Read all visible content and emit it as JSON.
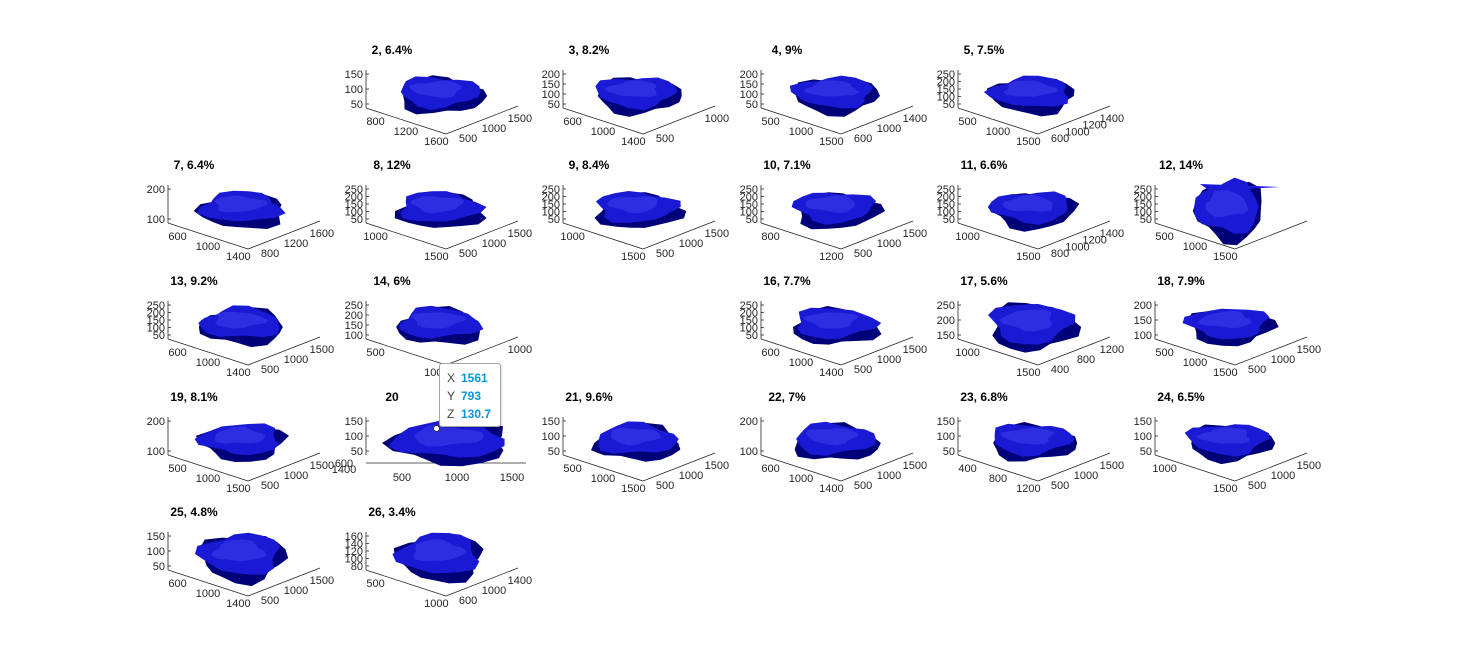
{
  "colors": {
    "surface": "#1a1ad4",
    "surface_dark": "#000078",
    "axis": "#262626"
  },
  "chart_data": {
    "type": "3d-surface-grid",
    "subplots": [
      {
        "title": "2, 6.4%",
        "z_ticks": [
          "150",
          "100",
          "50"
        ],
        "x_ticks": [
          "800",
          "1200",
          "1600"
        ],
        "y_ticks": [
          "500",
          "1000",
          "1500"
        ]
      },
      {
        "title": "3, 8.2%",
        "z_ticks": [
          "200",
          "150",
          "100",
          "50"
        ],
        "x_ticks": [
          "600",
          "1000",
          "1400"
        ],
        "y_ticks": [
          "500",
          "1000"
        ]
      },
      {
        "title": "4, 9%",
        "z_ticks": [
          "200",
          "150",
          "100",
          "50"
        ],
        "x_ticks": [
          "500",
          "1000",
          "1500"
        ],
        "y_ticks": [
          "600",
          "1000",
          "1400"
        ]
      },
      {
        "title": "5, 7.5%",
        "z_ticks": [
          "250",
          "200",
          "150",
          "100",
          "50"
        ],
        "x_ticks": [
          "500",
          "1000",
          "1500"
        ],
        "y_ticks": [
          "600",
          "1000",
          "1200",
          "1400"
        ]
      },
      {
        "title": "7, 6.4%",
        "z_ticks": [
          "200",
          "100"
        ],
        "x_ticks": [
          "600",
          "1000",
          "1400"
        ],
        "y_ticks": [
          "800",
          "1200",
          "1600"
        ]
      },
      {
        "title": "8, 12%",
        "z_ticks": [
          "250",
          "200",
          "150",
          "100",
          "50"
        ],
        "x_ticks": [
          "1000",
          "1500"
        ],
        "y_ticks": [
          "500",
          "1000",
          "1500"
        ]
      },
      {
        "title": "9, 8.4%",
        "z_ticks": [
          "250",
          "200",
          "150",
          "100",
          "50"
        ],
        "x_ticks": [
          "1000",
          "1500"
        ],
        "y_ticks": [
          "500",
          "1000",
          "1500"
        ]
      },
      {
        "title": "10, 7.1%",
        "z_ticks": [
          "250",
          "200",
          "150",
          "100",
          "50"
        ],
        "x_ticks": [
          "800",
          "1200"
        ],
        "y_ticks": [
          "500",
          "1000",
          "1500"
        ]
      },
      {
        "title": "11, 6.6%",
        "z_ticks": [
          "250",
          "200",
          "150",
          "100",
          "50"
        ],
        "x_ticks": [
          "1000",
          "1500"
        ],
        "y_ticks": [
          "800",
          "1000",
          "1200",
          "1400"
        ]
      },
      {
        "title": "12, 14%",
        "z_ticks": [
          "250",
          "200",
          "150",
          "100",
          "50"
        ],
        "x_ticks": [
          "500",
          "1000",
          "1500"
        ],
        "y_ticks": []
      },
      {
        "title": "13, 9.2%",
        "z_ticks": [
          "250",
          "200",
          "150",
          "100",
          "50"
        ],
        "x_ticks": [
          "600",
          "1000",
          "1400"
        ],
        "y_ticks": [
          "500",
          "1000",
          "1500"
        ]
      },
      {
        "title": "14, 6%",
        "z_ticks": [
          "250",
          "200",
          "150",
          "100"
        ],
        "x_ticks": [
          "500",
          "1000"
        ],
        "y_ticks": [
          "600",
          "1000"
        ]
      },
      {
        "title": "16, 7.7%",
        "z_ticks": [
          "250",
          "200",
          "150",
          "100",
          "50"
        ],
        "x_ticks": [
          "600",
          "1000",
          "1400"
        ],
        "y_ticks": [
          "500",
          "1000",
          "1500"
        ]
      },
      {
        "title": "17, 5.6%",
        "z_ticks": [
          "250",
          "200",
          "150"
        ],
        "x_ticks": [
          "1000",
          "1500"
        ],
        "y_ticks": [
          "400",
          "800",
          "1200"
        ]
      },
      {
        "title": "18, 7.9%",
        "z_ticks": [
          "200",
          "150",
          "100"
        ],
        "x_ticks": [
          "500",
          "1000",
          "1500"
        ],
        "y_ticks": [
          "500",
          "1000",
          "1500"
        ]
      },
      {
        "title": "19, 8.1%",
        "z_ticks": [
          "200",
          "100"
        ],
        "x_ticks": [
          "500",
          "1000",
          "1500"
        ],
        "y_ticks": [
          "500",
          "1000",
          "1500"
        ]
      },
      {
        "title": "20",
        "z_ticks": [
          "150",
          "100",
          "50"
        ],
        "x_ticks": [
          "500",
          "1000",
          "1500"
        ],
        "y_ticks": [
          "600",
          "1400"
        ]
      },
      {
        "title": "21, 9.6%",
        "z_ticks": [
          "150",
          "100",
          "50"
        ],
        "x_ticks": [
          "500",
          "1000",
          "1500"
        ],
        "y_ticks": [
          "500",
          "1000",
          "1500"
        ]
      },
      {
        "title": "22, 7%",
        "z_ticks": [
          "200",
          "100"
        ],
        "x_ticks": [
          "600",
          "1000",
          "1400"
        ],
        "y_ticks": [
          "500",
          "1000",
          "1500"
        ]
      },
      {
        "title": "23, 6.8%",
        "z_ticks": [
          "150",
          "100",
          "50"
        ],
        "x_ticks": [
          "400",
          "800",
          "1200"
        ],
        "y_ticks": [
          "500",
          "1000",
          "1500"
        ]
      },
      {
        "title": "24, 6.5%",
        "z_ticks": [
          "150",
          "100",
          "50"
        ],
        "x_ticks": [
          "1000",
          "1500"
        ],
        "y_ticks": [
          "500",
          "1000",
          "1500"
        ]
      },
      {
        "title": "25, 4.8%",
        "z_ticks": [
          "150",
          "100",
          "50"
        ],
        "x_ticks": [
          "600",
          "1000",
          "1400"
        ],
        "y_ticks": [
          "500",
          "1000",
          "1500"
        ]
      },
      {
        "title": "26, 3.4%",
        "z_ticks": [
          "160",
          "140",
          "120",
          "100",
          "80"
        ],
        "x_ticks": [
          "500",
          "1000"
        ],
        "y_ticks": [
          "600",
          "1000",
          "1400"
        ]
      }
    ],
    "datatip": {
      "x_label": "X",
      "x": "1561",
      "y_label": "Y",
      "y": "793",
      "z_label": "Z",
      "z": "130.7"
    }
  }
}
